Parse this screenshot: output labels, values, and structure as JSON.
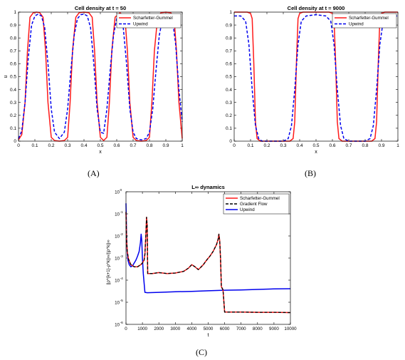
{
  "captions": {
    "a": "(A)",
    "b": "(B)",
    "c": "(C)"
  },
  "colors": {
    "sg": "#ff1a1a",
    "upwind": "#0000ee",
    "gradient": "#000000"
  },
  "chart_data": [
    {
      "type": "line",
      "title": "Cell density at t = 50",
      "xlabel": "x",
      "ylabel": "u",
      "xlim": [
        0,
        1
      ],
      "ylim": [
        0,
        1
      ],
      "xticks": [
        "0",
        "0.1",
        "0.2",
        "0.3",
        "0.4",
        "0.5",
        "0.6",
        "0.7",
        "0.8",
        "0.9",
        "1"
      ],
      "yticks": [
        "0",
        "0.1",
        "0.2",
        "0.3",
        "0.4",
        "0.5",
        "0.6",
        "0.7",
        "0.8",
        "0.9",
        "1"
      ],
      "legend": "top-right",
      "series": [
        {
          "name": "Scharfetter-Gummel",
          "style": "solid",
          "x": [
            0,
            0.02,
            0.04,
            0.055,
            0.07,
            0.09,
            0.11,
            0.13,
            0.15,
            0.165,
            0.18,
            0.2,
            0.22,
            0.25,
            0.28,
            0.3,
            0.315,
            0.33,
            0.35,
            0.37,
            0.4,
            0.43,
            0.45,
            0.465,
            0.48,
            0.5,
            0.52,
            0.54,
            0.555,
            0.57,
            0.59,
            0.62,
            0.65,
            0.665,
            0.68,
            0.7,
            0.72,
            0.75,
            0.78,
            0.8,
            0.815,
            0.83,
            0.85,
            0.87,
            0.9,
            0.93,
            0.95,
            0.965,
            0.98,
            1
          ],
          "y": [
            0.01,
            0.05,
            0.3,
            0.7,
            0.96,
            0.995,
            1.0,
            0.995,
            0.96,
            0.7,
            0.3,
            0.03,
            0.005,
            0.0,
            0.005,
            0.03,
            0.3,
            0.7,
            0.96,
            0.995,
            1.0,
            0.995,
            0.96,
            0.7,
            0.3,
            0.03,
            0.005,
            0.03,
            0.3,
            0.7,
            0.96,
            0.995,
            0.96,
            0.7,
            0.3,
            0.03,
            0.005,
            0.0,
            0.005,
            0.03,
            0.3,
            0.7,
            0.96,
            0.995,
            1.0,
            0.995,
            0.96,
            0.7,
            0.3,
            0.02
          ]
        },
        {
          "name": "Upwind",
          "style": "dashed",
          "x": [
            0,
            0.02,
            0.04,
            0.06,
            0.08,
            0.1,
            0.12,
            0.14,
            0.16,
            0.18,
            0.2,
            0.22,
            0.25,
            0.28,
            0.3,
            0.32,
            0.34,
            0.36,
            0.38,
            0.4,
            0.42,
            0.44,
            0.46,
            0.48,
            0.5,
            0.52,
            0.54,
            0.56,
            0.58,
            0.6,
            0.62,
            0.64,
            0.66,
            0.68,
            0.7,
            0.72,
            0.75,
            0.78,
            0.8,
            0.82,
            0.84,
            0.86,
            0.88,
            0.9,
            0.92,
            0.94,
            0.96,
            0.98,
            1
          ],
          "y": [
            0.02,
            0.08,
            0.3,
            0.65,
            0.9,
            0.97,
            0.985,
            0.97,
            0.88,
            0.6,
            0.25,
            0.07,
            0.02,
            0.07,
            0.25,
            0.55,
            0.82,
            0.95,
            0.98,
            0.985,
            0.97,
            0.88,
            0.6,
            0.25,
            0.07,
            0.06,
            0.25,
            0.55,
            0.82,
            0.95,
            0.97,
            0.88,
            0.6,
            0.25,
            0.07,
            0.02,
            0.01,
            0.02,
            0.07,
            0.25,
            0.55,
            0.82,
            0.95,
            0.98,
            0.985,
            0.95,
            0.75,
            0.4,
            0.15
          ]
        }
      ]
    },
    {
      "type": "line",
      "title": "Cell density at t = 9000",
      "xlabel": "x",
      "ylabel": "",
      "xlim": [
        0,
        1
      ],
      "ylim": [
        0,
        1
      ],
      "xticks": [
        "0",
        "0.1",
        "0.2",
        "0.3",
        "0.4",
        "0.5",
        "0.6",
        "0.7",
        "0.8",
        "0.9",
        "1"
      ],
      "yticks": [
        "0",
        "0.1",
        "0.2",
        "0.3",
        "0.4",
        "0.5",
        "0.6",
        "0.7",
        "0.8",
        "0.9",
        "1"
      ],
      "legend": "top-right",
      "series": [
        {
          "name": "Scharfetter-Gummel",
          "style": "solid",
          "x": [
            0,
            0.05,
            0.08,
            0.1,
            0.11,
            0.12,
            0.13,
            0.14,
            0.16,
            0.2,
            0.3,
            0.34,
            0.36,
            0.37,
            0.38,
            0.39,
            0.4,
            0.42,
            0.5,
            0.58,
            0.6,
            0.61,
            0.62,
            0.63,
            0.64,
            0.66,
            0.7,
            0.8,
            0.84,
            0.86,
            0.87,
            0.88,
            0.89,
            0.9,
            0.92,
            0.96,
            1
          ],
          "y": [
            1.0,
            1.0,
            1.0,
            0.99,
            0.95,
            0.6,
            0.15,
            0.02,
            0.0,
            0.0,
            0.0,
            0.0,
            0.02,
            0.15,
            0.6,
            0.95,
            0.99,
            1.0,
            1.0,
            1.0,
            0.99,
            0.95,
            0.6,
            0.15,
            0.02,
            0.0,
            0.0,
            0.0,
            0.0,
            0.02,
            0.15,
            0.6,
            0.95,
            0.99,
            1.0,
            1.0,
            1.0
          ]
        },
        {
          "name": "Upwind",
          "style": "dashed",
          "x": [
            0,
            0.04,
            0.07,
            0.09,
            0.11,
            0.13,
            0.15,
            0.17,
            0.2,
            0.3,
            0.33,
            0.35,
            0.37,
            0.39,
            0.41,
            0.44,
            0.5,
            0.56,
            0.59,
            0.61,
            0.63,
            0.65,
            0.67,
            0.7,
            0.8,
            0.83,
            0.85,
            0.87,
            0.89,
            0.91,
            0.94,
            1
          ],
          "y": [
            0.97,
            0.97,
            0.93,
            0.75,
            0.4,
            0.12,
            0.02,
            0.0,
            0.0,
            0.0,
            0.02,
            0.12,
            0.4,
            0.75,
            0.93,
            0.97,
            0.98,
            0.97,
            0.93,
            0.75,
            0.4,
            0.12,
            0.02,
            0.0,
            0.0,
            0.02,
            0.12,
            0.4,
            0.75,
            0.93,
            0.97,
            0.97
          ]
        }
      ]
    },
    {
      "type": "line",
      "title": "L∞ dynamics",
      "xlabel": "t",
      "ylabel": "||ρ^{k+1}-ρ^k||∞/||ρ^k||∞",
      "xlim": [
        0,
        10000
      ],
      "ylim": [
        1e-06,
        1
      ],
      "yscale": "log",
      "xticks": [
        "0",
        "1000",
        "2000",
        "3000",
        "4000",
        "5000",
        "6000",
        "7000",
        "8000",
        "9000",
        "10000"
      ],
      "ytick_exponents": [
        "0",
        "-1",
        "-2",
        "-3",
        "-4",
        "-5",
        "-6"
      ],
      "legend": "top-right",
      "series": [
        {
          "name": "Scharfetter-Gummel",
          "style": "solid",
          "x": [
            0,
            20,
            40,
            80,
            150,
            300,
            500,
            700,
            900,
            1000,
            1100,
            1150,
            1200,
            1250,
            1290,
            1320,
            1400,
            1600,
            2000,
            2500,
            3000,
            3500,
            3800,
            4000,
            4200,
            4400,
            4500,
            4700,
            4900,
            5100,
            5300,
            5500,
            5600,
            5650,
            5700,
            5750,
            5800,
            5900,
            6000,
            6500,
            7000,
            8000,
            9000,
            10000
          ],
          "y": [
            0.12,
            0.02,
            0.006,
            0.002,
            0.0009,
            0.0005,
            0.0004,
            0.0004,
            0.0005,
            0.0006,
            0.0008,
            0.0015,
            0.008,
            0.07,
            0.03,
            0.0002,
            0.0002,
            0.0002,
            0.00022,
            0.0002,
            0.00021,
            0.00025,
            0.00035,
            0.0005,
            0.0004,
            0.0003,
            0.00035,
            0.0005,
            0.0008,
            0.0012,
            0.002,
            0.004,
            0.007,
            0.012,
            0.006,
            0.001,
            5e-05,
            3.7e-05,
            3.6e-06,
            3.6e-06,
            3.6e-06,
            3.5e-06,
            3.5e-06,
            3.4e-06
          ]
        },
        {
          "name": "Gradient Flow",
          "style": "dashed",
          "x": [
            0,
            20,
            40,
            80,
            150,
            300,
            500,
            700,
            900,
            1000,
            1100,
            1150,
            1200,
            1250,
            1290,
            1320,
            1400,
            1600,
            2000,
            2500,
            3000,
            3500,
            3800,
            4000,
            4200,
            4400,
            4500,
            4700,
            4900,
            5100,
            5300,
            5500,
            5600,
            5650,
            5700,
            5750,
            5800,
            5900,
            6000,
            6500,
            7000,
            8000,
            9000,
            10000
          ],
          "y": [
            0.12,
            0.02,
            0.006,
            0.002,
            0.0009,
            0.0005,
            0.0004,
            0.0004,
            0.0005,
            0.0006,
            0.0008,
            0.0015,
            0.008,
            0.07,
            0.03,
            0.0002,
            0.0002,
            0.0002,
            0.00022,
            0.0002,
            0.00021,
            0.00025,
            0.00035,
            0.0005,
            0.0004,
            0.0003,
            0.00035,
            0.0005,
            0.0008,
            0.0012,
            0.002,
            0.004,
            0.007,
            0.012,
            0.006,
            0.001,
            5e-05,
            3.7e-05,
            3.6e-06,
            3.6e-06,
            3.6e-06,
            3.5e-06,
            3.5e-06,
            3.4e-06
          ]
        },
        {
          "name": "Upwind",
          "style": "solid",
          "x": [
            0,
            20,
            40,
            70,
            120,
            200,
            300,
            400,
            500,
            600,
            700,
            800,
            880,
            920,
            960,
            1000,
            1050,
            1150,
            1300,
            2000,
            3000,
            4000,
            5000,
            6000,
            7000,
            8000,
            9000,
            10000
          ],
          "y": [
            0.3,
            0.05,
            0.008,
            0.002,
            0.0008,
            0.0005,
            0.0004,
            0.00045,
            0.0006,
            0.0008,
            0.0012,
            0.002,
            0.005,
            0.012,
            0.006,
            0.001,
            0.0002,
            2.8e-05,
            2.7e-05,
            2.8e-05,
            3e-05,
            3.1e-05,
            3.3e-05,
            3.5e-05,
            3.6e-05,
            3.8e-05,
            4e-05,
            4.1e-05
          ]
        }
      ]
    }
  ]
}
